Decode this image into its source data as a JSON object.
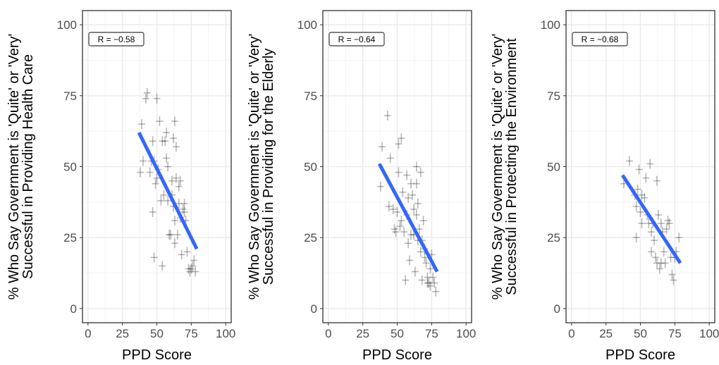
{
  "chart_data": [
    {
      "type": "scatter",
      "xlabel": "PPD Score",
      "ylabel_lines": [
        "% Who Say Government is 'Quite' or 'Very'",
        "Successful in Providing Health Care"
      ],
      "annotation": "R = −0.58",
      "xlim": [
        -4,
        104
      ],
      "ylim": [
        -5,
        105
      ],
      "xticks": [
        0,
        25,
        50,
        75,
        100
      ],
      "yticks": [
        0,
        25,
        50,
        75,
        100
      ],
      "trend": {
        "x": [
          37,
          79
        ],
        "y": [
          62,
          21
        ]
      },
      "points": [
        [
          38,
          48
        ],
        [
          39,
          65
        ],
        [
          40,
          52
        ],
        [
          42,
          74
        ],
        [
          43,
          76
        ],
        [
          45,
          48
        ],
        [
          46,
          52
        ],
        [
          47,
          59
        ],
        [
          47,
          34
        ],
        [
          48,
          52
        ],
        [
          48,
          18
        ],
        [
          49,
          44
        ],
        [
          50,
          46
        ],
        [
          50,
          74
        ],
        [
          51,
          49
        ],
        [
          52,
          66
        ],
        [
          53,
          38
        ],
        [
          54,
          59
        ],
        [
          54,
          15
        ],
        [
          55,
          40
        ],
        [
          56,
          59
        ],
        [
          57,
          62
        ],
        [
          57,
          53
        ],
        [
          58,
          50
        ],
        [
          58,
          38
        ],
        [
          59,
          26
        ],
        [
          60,
          26
        ],
        [
          61,
          40
        ],
        [
          61,
          45
        ],
        [
          62,
          60
        ],
        [
          62,
          36
        ],
        [
          63,
          66
        ],
        [
          63,
          31
        ],
        [
          63,
          23
        ],
        [
          64,
          57
        ],
        [
          64,
          46
        ],
        [
          65,
          26
        ],
        [
          66,
          37
        ],
        [
          66,
          43
        ],
        [
          67,
          32
        ],
        [
          67,
          45
        ],
        [
          68,
          19
        ],
        [
          69,
          35
        ],
        [
          70,
          34
        ],
        [
          70,
          37
        ],
        [
          71,
          31
        ],
        [
          72,
          20
        ],
        [
          73,
          14
        ],
        [
          74,
          13
        ],
        [
          75,
          14
        ],
        [
          76,
          15
        ],
        [
          77,
          17
        ],
        [
          78,
          13
        ]
      ]
    },
    {
      "type": "scatter",
      "xlabel": "PPD Score",
      "ylabel_lines": [
        "% Who Say Government is 'Quite' or 'Very'",
        "Successful in Providing for the Elderly"
      ],
      "annotation": "R = −0.64",
      "xlim": [
        -4,
        104
      ],
      "ylim": [
        -5,
        105
      ],
      "xticks": [
        0,
        25,
        50,
        75,
        100
      ],
      "yticks": [
        0,
        25,
        50,
        75,
        100
      ],
      "trend": {
        "x": [
          37,
          79
        ],
        "y": [
          51,
          13
        ]
      },
      "points": [
        [
          38,
          43
        ],
        [
          39,
          57
        ],
        [
          43,
          68
        ],
        [
          44,
          36
        ],
        [
          45,
          53
        ],
        [
          47,
          35
        ],
        [
          48,
          28
        ],
        [
          49,
          27
        ],
        [
          50,
          34
        ],
        [
          51,
          58
        ],
        [
          51,
          48
        ],
        [
          52,
          29
        ],
        [
          53,
          60
        ],
        [
          53,
          31
        ],
        [
          54,
          41
        ],
        [
          55,
          27
        ],
        [
          56,
          10
        ],
        [
          57,
          47
        ],
        [
          57,
          33
        ],
        [
          58,
          23
        ],
        [
          58,
          39
        ],
        [
          59,
          17
        ],
        [
          60,
          44
        ],
        [
          60,
          26
        ],
        [
          61,
          40
        ],
        [
          62,
          35
        ],
        [
          62,
          26
        ],
        [
          63,
          13
        ],
        [
          64,
          50
        ],
        [
          64,
          44
        ],
        [
          64,
          33
        ],
        [
          65,
          37
        ],
        [
          65,
          24
        ],
        [
          66,
          28
        ],
        [
          67,
          20
        ],
        [
          67,
          48
        ],
        [
          68,
          10
        ],
        [
          68,
          24
        ],
        [
          69,
          31
        ],
        [
          70,
          21
        ],
        [
          70,
          18
        ],
        [
          71,
          16
        ],
        [
          72,
          11
        ],
        [
          72,
          9
        ],
        [
          73,
          9
        ],
        [
          74,
          8
        ],
        [
          74,
          14
        ],
        [
          75,
          19
        ],
        [
          76,
          11
        ],
        [
          77,
          9
        ],
        [
          78,
          6
        ]
      ]
    },
    {
      "type": "scatter",
      "xlabel": "PPD Score",
      "ylabel_lines": [
        "% Who Say Government is 'Quite' or 'Very'",
        "Successful in Protecting the Environment"
      ],
      "annotation": "R = −0.68",
      "xlim": [
        -4,
        104
      ],
      "ylim": [
        -5,
        105
      ],
      "xticks": [
        0,
        25,
        50,
        75,
        100
      ],
      "yticks": [
        0,
        25,
        50,
        75,
        100
      ],
      "trend": {
        "x": [
          37,
          79
        ],
        "y": [
          47,
          16
        ]
      },
      "points": [
        [
          38,
          44
        ],
        [
          42,
          52
        ],
        [
          46,
          40
        ],
        [
          47,
          36
        ],
        [
          47,
          25
        ],
        [
          48,
          42
        ],
        [
          49,
          49
        ],
        [
          50,
          34
        ],
        [
          51,
          40
        ],
        [
          51,
          30
        ],
        [
          53,
          39
        ],
        [
          54,
          46
        ],
        [
          55,
          33
        ],
        [
          56,
          30
        ],
        [
          57,
          51
        ],
        [
          58,
          27
        ],
        [
          58,
          20
        ],
        [
          59,
          30
        ],
        [
          60,
          24
        ],
        [
          61,
          18
        ],
        [
          62,
          45
        ],
        [
          62,
          16
        ],
        [
          63,
          33
        ],
        [
          64,
          14
        ],
        [
          65,
          30
        ],
        [
          65,
          16
        ],
        [
          66,
          27
        ],
        [
          67,
          20
        ],
        [
          68,
          16
        ],
        [
          69,
          28
        ],
        [
          70,
          31
        ],
        [
          71,
          30
        ],
        [
          72,
          18
        ],
        [
          73,
          12
        ],
        [
          74,
          10
        ],
        [
          75,
          18
        ],
        [
          76,
          20
        ],
        [
          78,
          25
        ]
      ]
    }
  ]
}
